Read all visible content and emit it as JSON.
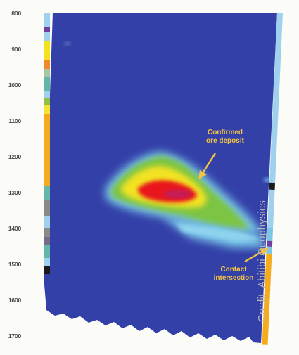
{
  "depth_axis": {
    "ticks": [
      "800",
      "900",
      "1000",
      "1100",
      "1200",
      "1300",
      "1400",
      "1500",
      "1600",
      "1700"
    ]
  },
  "annotations": {
    "ore_deposit": {
      "line1": "Confirmed",
      "line2": "ore deposit"
    },
    "contact": {
      "line1": "Contact",
      "line2": "intersection"
    }
  },
  "credit": "Credit: Abitibi Geophysics",
  "colors": {
    "background": "#3340a8",
    "anomaly_high": "#e8161d",
    "anomaly_mid": "#f2e223",
    "anomaly_low": "#7cc443",
    "anomaly_faint": "#78c6e8",
    "annotation": "#f4c342",
    "drillhole_left": "#f4ac1e",
    "drillhole_right": "#9fd1ef"
  }
}
